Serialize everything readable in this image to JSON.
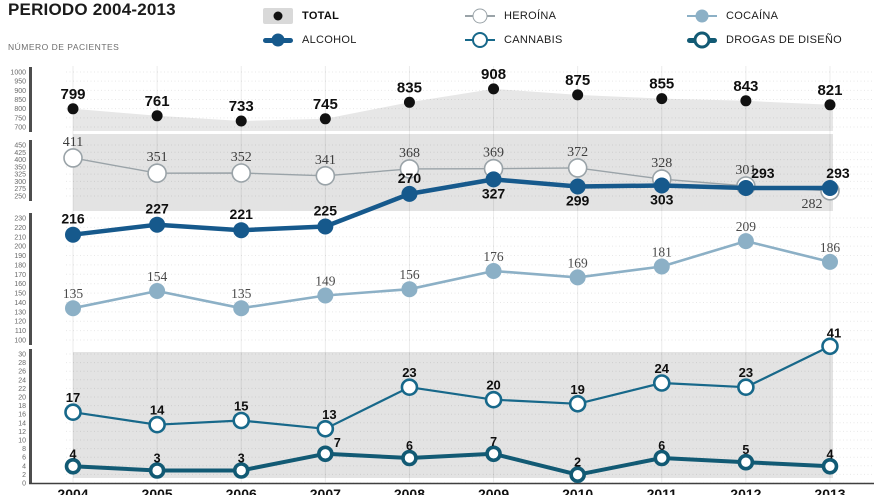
{
  "header": {
    "title": "PERIODO 2004-2013",
    "axis_label": "NÚMERO DE PACIENTES"
  },
  "legend": [
    {
      "id": "total",
      "label": "TOTAL"
    },
    {
      "id": "alcohol",
      "label": "ALCOHOL"
    },
    {
      "id": "heroina",
      "label": "HEROÍNA"
    },
    {
      "id": "cannabis",
      "label": "CANNABIS"
    },
    {
      "id": "cocaina",
      "label": "COCAÍNA"
    },
    {
      "id": "drogas",
      "label": "DROGAS DE DISEÑO"
    }
  ],
  "chart_data": {
    "type": "line",
    "title": "PERIODO 2004-2013",
    "ylabel": "NÚMERO DE PACIENTES",
    "legend_position": "top",
    "grid": true,
    "x_labels": [
      "2004",
      "2005",
      "2006",
      "2007",
      "2008",
      "2009",
      "2010",
      "2011",
      "2012",
      "2013"
    ],
    "series": [
      {
        "id": "total",
        "name": "TOTAL",
        "values": [
          799,
          761,
          733,
          745,
          835,
          908,
          875,
          855,
          843,
          821
        ]
      },
      {
        "id": "heroina",
        "name": "HEROÍNA",
        "values": [
          411,
          351,
          352,
          341,
          368,
          369,
          372,
          328,
          301,
          282
        ]
      },
      {
        "id": "alcohol",
        "name": "ALCOHOL",
        "values": [
          216,
          227,
          221,
          225,
          270,
          327,
          299,
          303,
          293,
          293
        ]
      },
      {
        "id": "cocaina",
        "name": "COCAÍNA",
        "values": [
          135,
          154,
          135,
          149,
          156,
          176,
          169,
          181,
          209,
          186
        ]
      },
      {
        "id": "cannabis",
        "name": "CANNABIS",
        "values": [
          17,
          14,
          15,
          13,
          23,
          20,
          19,
          24,
          23,
          41
        ]
      },
      {
        "id": "drogas",
        "name": "DROGAS DE DISEÑO",
        "values": [
          4,
          3,
          3,
          7,
          6,
          7,
          2,
          6,
          5,
          4
        ]
      }
    ],
    "axis_bands": [
      {
        "ticks": [
          1000,
          950,
          900,
          850,
          800,
          750,
          700
        ]
      },
      {
        "ticks": [
          450,
          425,
          400,
          350,
          325,
          300,
          275,
          250
        ]
      },
      {
        "ticks": [
          230,
          220,
          210,
          200,
          190,
          180,
          170,
          160,
          150,
          140,
          130,
          120,
          110,
          100
        ]
      },
      {
        "ticks": [
          30,
          28,
          26,
          24,
          22,
          20,
          18,
          16,
          14,
          12,
          10,
          8,
          6,
          4,
          2,
          0
        ]
      }
    ],
    "colors": {
      "total": "#111111",
      "total_area": "#e7e7e7",
      "band_bg": "#e3e3e3",
      "legend_band": "#d9d9d9",
      "alcohol": "#16598c",
      "heroina": "#9aa3a8",
      "cocaina": "#8cb0c6",
      "cannabis": "#17688a",
      "drogas": "#125a74",
      "tick_text": "#6a6a6a",
      "axis_bar": "#4d4d4d",
      "serif_label": "#3d3d3d",
      "bold_label": "#0f0f0f"
    }
  }
}
